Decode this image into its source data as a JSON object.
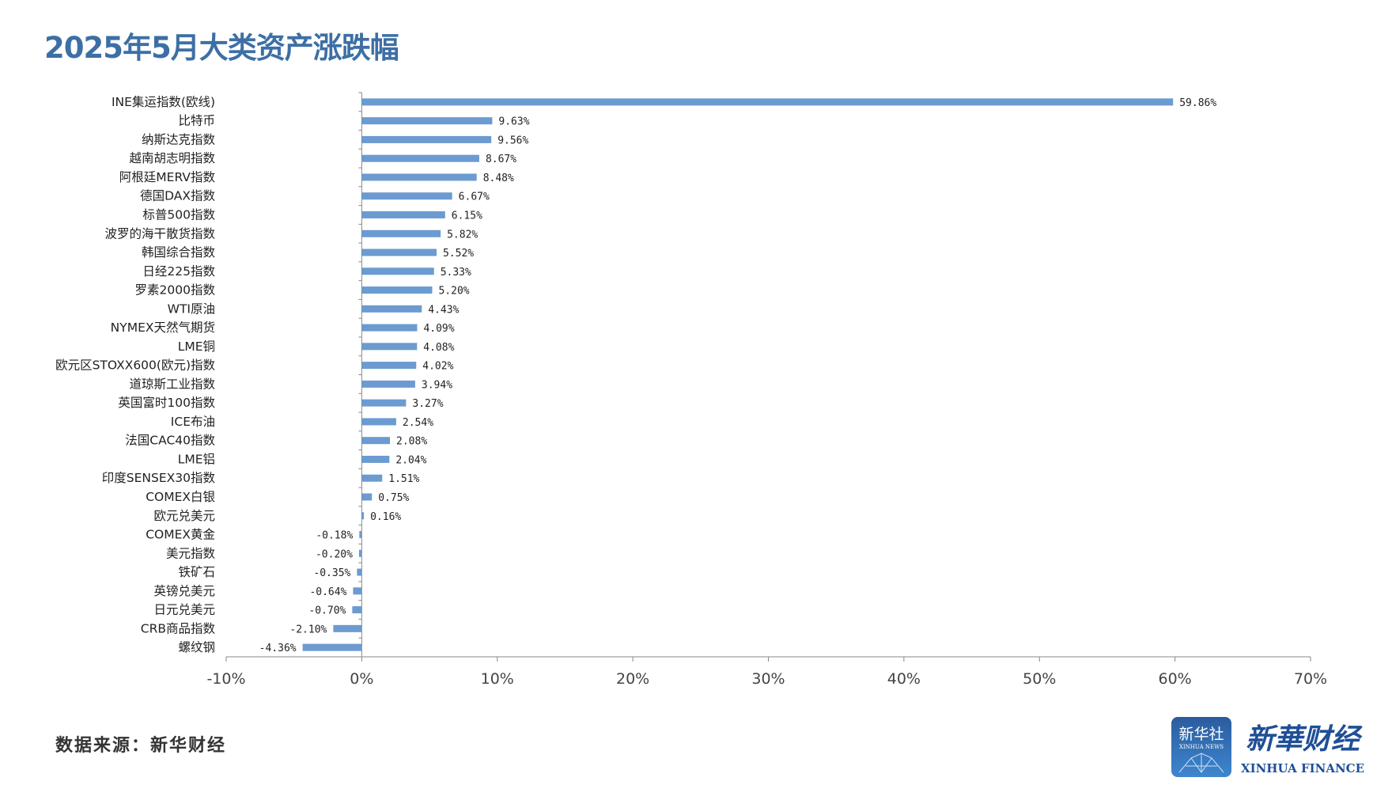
{
  "title": "2025年5月大类资产涨跌幅",
  "source": "数据来源：新华财经",
  "logo": {
    "badge_text": "新华社",
    "badge_sub": "XINHUA NEWS",
    "brand": "新华财经",
    "brand_en": "XINHUA FINANCE"
  },
  "colors": {
    "bar": "#6b9bd0",
    "title": "#3d6fa5",
    "axis": "#888888"
  },
  "chart_data": {
    "type": "bar",
    "orientation": "horizontal",
    "title": "2025年5月大类资产涨跌幅",
    "categories": [
      "INE集运指数(欧线)",
      "比特币",
      "纳斯达克指数",
      "越南胡志明指数",
      "阿根廷MERV指数",
      "德国DAX指数",
      "标普500指数",
      "波罗的海干散货指数",
      "韩国综合指数",
      "日经225指数",
      "罗素2000指数",
      "WTI原油",
      "NYMEX天然气期货",
      "LME铜",
      "欧元区STOXX600(欧元)指数",
      "道琼斯工业指数",
      "英国富时100指数",
      "ICE布油",
      "法国CAC40指数",
      "LME铝",
      "印度SENSEX30指数",
      "COMEX白银",
      "欧元兑美元",
      "COMEX黄金",
      "美元指数",
      "铁矿石",
      "英镑兑美元",
      "日元兑美元",
      "CRB商品指数",
      "螺纹钢"
    ],
    "values": [
      59.86,
      9.63,
      9.56,
      8.67,
      8.48,
      6.67,
      6.15,
      5.82,
      5.52,
      5.33,
      5.2,
      4.43,
      4.09,
      4.08,
      4.02,
      3.94,
      3.27,
      2.54,
      2.08,
      2.04,
      1.51,
      0.75,
      0.16,
      -0.18,
      -0.2,
      -0.35,
      -0.64,
      -0.7,
      -2.1,
      -4.36
    ],
    "data_labels": [
      "59.86%",
      "9.63%",
      "9.56%",
      "8.67%",
      "8.48%",
      "6.67%",
      "6.15%",
      "5.82%",
      "5.52%",
      "5.33%",
      "5.20%",
      "4.43%",
      "4.09%",
      "4.08%",
      "4.02%",
      "3.94%",
      "3.27%",
      "2.54%",
      "2.08%",
      "2.04%",
      "1.51%",
      "0.75%",
      "0.16%",
      "-0.18%",
      "-0.20%",
      "-0.35%",
      "-0.64%",
      "-0.70%",
      "-2.10%",
      "-4.36%"
    ],
    "xlim": [
      -10,
      70
    ],
    "xticks": [
      -10,
      0,
      10,
      20,
      30,
      40,
      50,
      60,
      70
    ],
    "xtick_labels": [
      "-10%",
      "0%",
      "10%",
      "20%",
      "30%",
      "40%",
      "50%",
      "60%",
      "70%"
    ],
    "grid": false,
    "legend": "none"
  }
}
